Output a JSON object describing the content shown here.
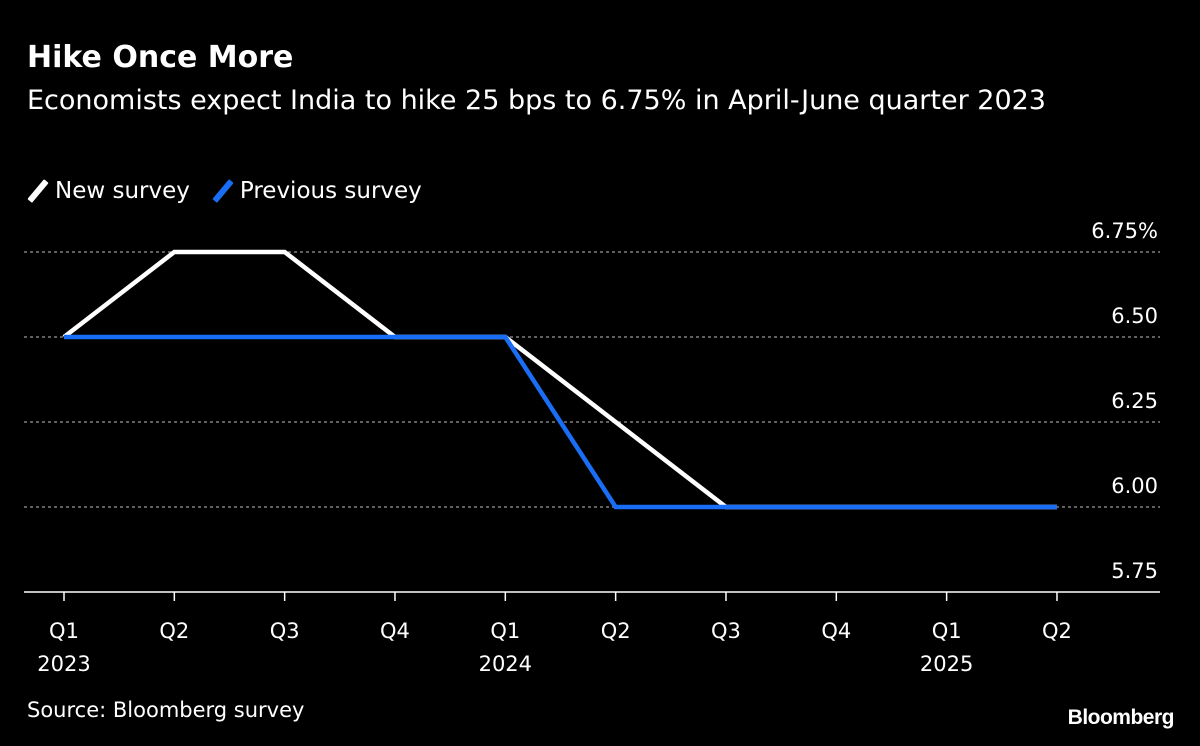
{
  "chart_data": {
    "type": "line",
    "title": "Hike Once More",
    "subtitle": "Economists expect India to hike 25 bps to 6.75% in April-June quarter 2023",
    "categories": [
      "Q1",
      "Q2",
      "Q3",
      "Q4",
      "Q1",
      "Q2",
      "Q3",
      "Q4",
      "Q1",
      "Q2"
    ],
    "category_years": [
      "2023",
      "",
      "",
      "",
      "2024",
      "",
      "",
      "",
      "2025",
      ""
    ],
    "series": [
      {
        "name": "New survey",
        "color": "#ffffff",
        "values": [
          6.5,
          6.75,
          6.75,
          6.5,
          6.5,
          6.25,
          6.0,
          6.0,
          6.0,
          6.0
        ]
      },
      {
        "name": "Previous survey",
        "color": "#1a6ef5",
        "values": [
          6.5,
          6.5,
          6.5,
          6.5,
          6.5,
          6.0,
          6.0,
          6.0,
          6.0,
          6.0
        ]
      }
    ],
    "y_ticks": [
      "5.75",
      "6.00",
      "6.25",
      "6.50",
      "6.75%"
    ],
    "y_tick_values": [
      5.75,
      6.0,
      6.25,
      6.5,
      6.75
    ],
    "ylim": [
      5.75,
      6.75
    ],
    "y_axis_side": "right",
    "grid": "dotted horizontal",
    "legend_placement": "top-left",
    "source": "Source: Bloomberg survey",
    "logo": "Bloomberg"
  }
}
